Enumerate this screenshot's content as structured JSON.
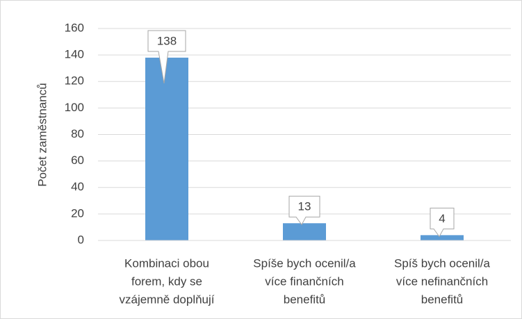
{
  "chart_data": {
    "type": "bar",
    "y_label": "Počet zaměstnanců",
    "categories": [
      [
        "Kombinaci obou",
        "forem, kdy se",
        "vzájemně doplňují"
      ],
      [
        "Spíše bych ocenil/a",
        "více finančních",
        "benefitů"
      ],
      [
        "Spíš bych ocenil/a",
        "více nefinančních",
        "benefitů"
      ]
    ],
    "values": [
      138,
      13,
      4
    ],
    "color": "#5b9bd5",
    "ylim": [
      0,
      160
    ],
    "yticks": [
      0,
      20,
      40,
      60,
      80,
      100,
      120,
      140,
      160
    ],
    "grid": true
  }
}
